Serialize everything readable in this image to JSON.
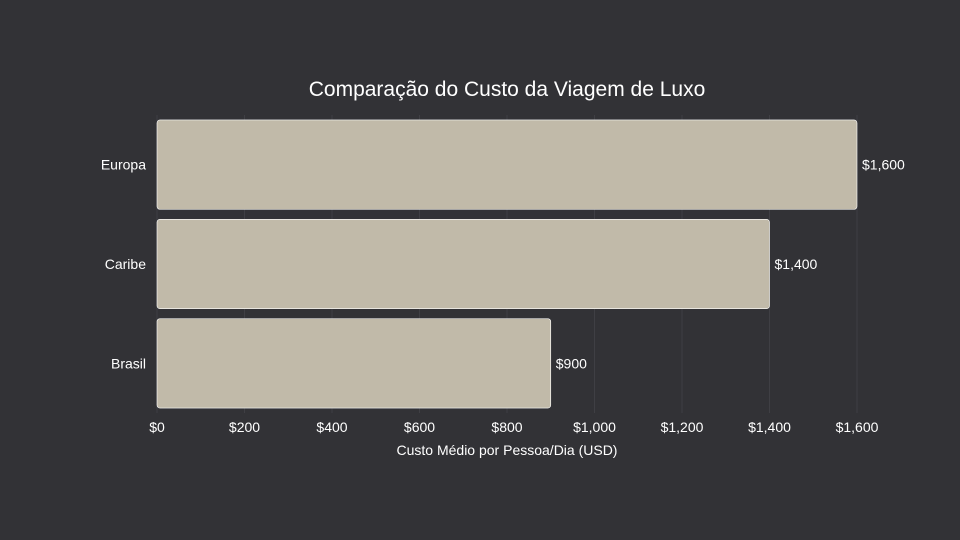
{
  "chart_data": {
    "type": "bar",
    "orientation": "horizontal",
    "title": "Comparação do Custo da Viagem de Luxo",
    "xlabel": "Custo Médio por Pessoa/Dia (USD)",
    "ylabel": "",
    "categories": [
      "Europa",
      "Caribe",
      "Brasil"
    ],
    "values": [
      1600,
      1400,
      900
    ],
    "value_labels": [
      "$1,600",
      "$1,400",
      "$900"
    ],
    "xlim": [
      0,
      1600
    ],
    "x_ticks": [
      0,
      200,
      400,
      600,
      800,
      1000,
      1200,
      1400,
      1600
    ],
    "x_tick_labels": [
      "$0",
      "$200",
      "$400",
      "$600",
      "$800",
      "$1,000",
      "$1,200",
      "$1,400",
      "$1,600"
    ],
    "grid": true,
    "legend": "none",
    "colors": {
      "background": "#323236",
      "bar": "#c1baa9",
      "bar_edge": "#ffffff",
      "text": "#ffffff",
      "grid": "#3f3f44"
    }
  }
}
